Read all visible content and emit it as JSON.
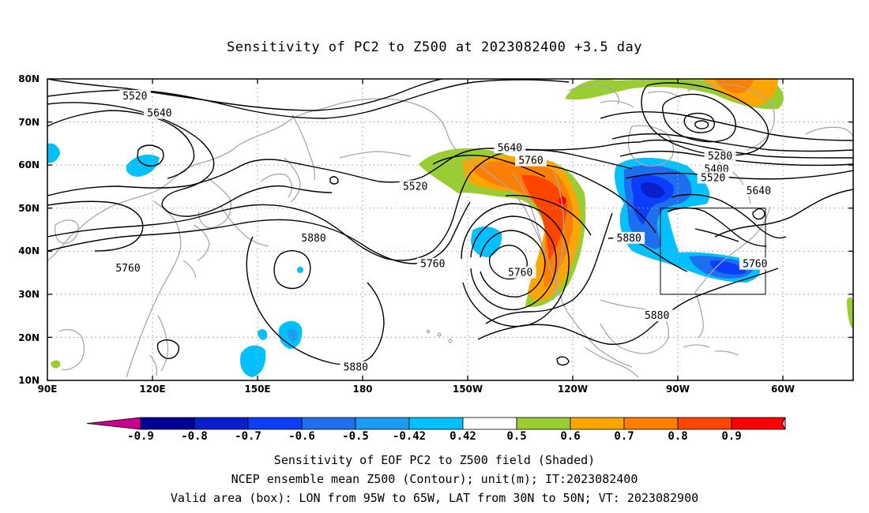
{
  "title": "Sensitivity of PC2 to Z500 at 2023082400 +3.5 day",
  "map": {
    "lat_ticks": [
      "80N",
      "70N",
      "60N",
      "50N",
      "40N",
      "30N",
      "20N",
      "10N"
    ],
    "lon_ticks": [
      "90E",
      "120E",
      "150E",
      "180",
      "150W",
      "120W",
      "90W",
      "60W"
    ],
    "lon_range_deg_east": [
      90,
      320
    ],
    "lat_range": [
      10,
      80
    ],
    "grid": "dotted",
    "valid_box": {
      "lon_west": -95,
      "lon_east": -65,
      "lat_south": 30,
      "lat_north": 50
    },
    "contour_labels": [
      {
        "text": "5520",
        "lon": 115,
        "lat": 76
      },
      {
        "text": "5640",
        "lon": 122,
        "lat": 72
      },
      {
        "text": "5520",
        "lon": 195,
        "lat": 55
      },
      {
        "text": "5880",
        "lon": 166,
        "lat": 43
      },
      {
        "text": "5760",
        "lon": 113,
        "lat": 36
      },
      {
        "text": "5760",
        "lon": 200,
        "lat": 37
      },
      {
        "text": "5640",
        "lon": 222,
        "lat": 64
      },
      {
        "text": "5760",
        "lon": 228,
        "lat": 61
      },
      {
        "text": "5760",
        "lon": 225,
        "lat": 35
      },
      {
        "text": "5880",
        "lon": 256,
        "lat": 43
      },
      {
        "text": "5880",
        "lon": 264,
        "lat": 25
      },
      {
        "text": "5880",
        "lon": 178,
        "lat": 13
      },
      {
        "text": "5280",
        "lon": 282,
        "lat": 62
      },
      {
        "text": "5400",
        "lon": 281,
        "lat": 59
      },
      {
        "text": "5520",
        "lon": 280,
        "lat": 57
      },
      {
        "text": "5640",
        "lon": 293,
        "lat": 54
      },
      {
        "text": "5760",
        "lon": 292,
        "lat": 37
      }
    ]
  },
  "colorbar": {
    "labels": [
      "-0.9",
      "-0.8",
      "-0.7",
      "-0.6",
      "-0.5",
      "-0.42",
      "0.42",
      "0.5",
      "0.6",
      "0.7",
      "0.8",
      "0.9"
    ],
    "colors": [
      "#000099",
      "#0a1ecc",
      "#0b3dfa",
      "#1e6ef0",
      "#1a9cf5",
      "#00c0ff",
      "#ffffff",
      "#9acd32",
      "#ffa500",
      "#ff7f00",
      "#ff4500",
      "#ff0000"
    ],
    "low_end_color": "#c8008c",
    "high_end_color": "#ff9ec8"
  },
  "footer": {
    "line1": "Sensitivity of EOF PC2 to Z500 field (Shaded)",
    "line2": "NCEP ensemble mean Z500 (Contour); unit(m); IT:2023082400",
    "line3": "Valid area (box): LON from 95W to 65W, LAT from 30N to 50N; VT: 2023082900"
  }
}
